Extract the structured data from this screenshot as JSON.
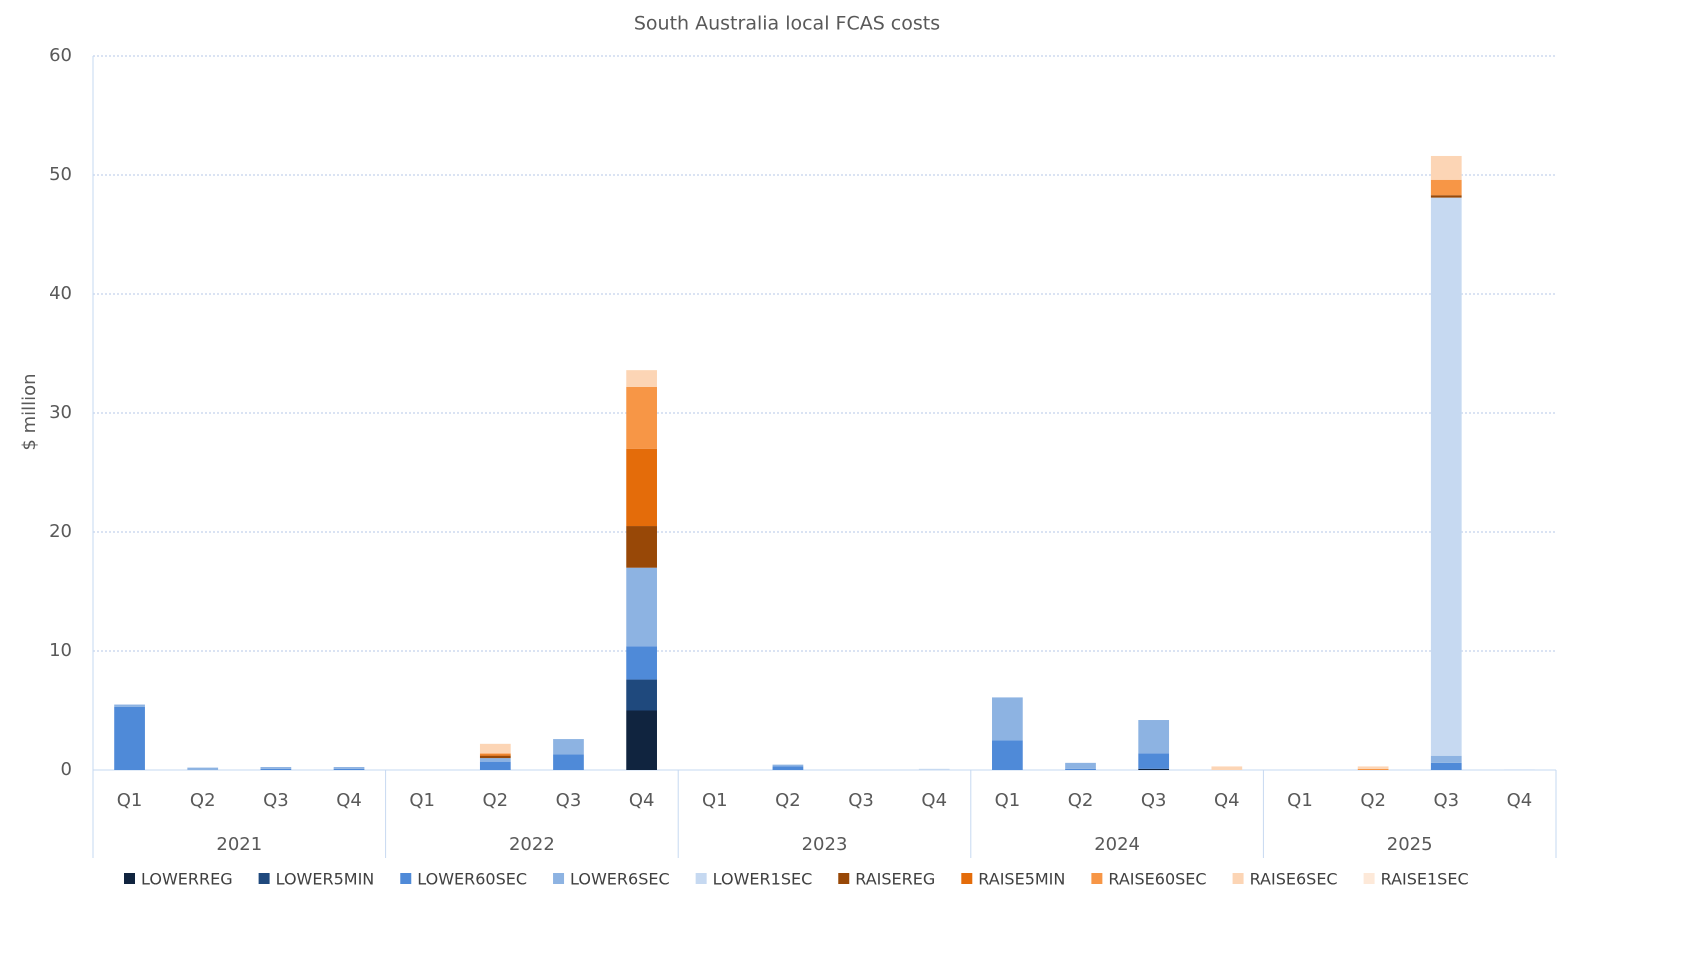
{
  "chart_data": {
    "type": "bar",
    "stacked": true,
    "title": "South Australia local FCAS costs",
    "y_label": "$ million",
    "categories": [
      "Q1",
      "Q2",
      "Q3",
      "Q4",
      "Q1",
      "Q2",
      "Q3",
      "Q4",
      "Q1",
      "Q2",
      "Q3",
      "Q4",
      "Q1",
      "Q2",
      "Q3",
      "Q4",
      "Q1",
      "Q2",
      "Q3",
      "Q4"
    ],
    "groups": [
      "2021",
      "2022",
      "2023",
      "2024",
      "2025"
    ],
    "ylim": [
      0,
      60
    ],
    "yticks": [
      0,
      10,
      20,
      30,
      40,
      50,
      60
    ],
    "grid": true,
    "legend": "bottom",
    "series": [
      {
        "name": "LOWERREG",
        "color": "#10243f",
        "values": [
          0,
          0,
          0,
          0,
          0,
          0,
          0,
          5.0,
          0,
          0,
          0,
          0,
          0,
          0,
          0.1,
          0,
          0,
          0,
          0,
          0
        ]
      },
      {
        "name": "LOWER5MIN",
        "color": "#1f497d",
        "values": [
          0,
          0,
          0,
          0,
          0,
          0,
          0,
          2.6,
          0,
          0,
          0,
          0,
          0,
          0,
          0,
          0,
          0,
          0,
          0,
          0
        ]
      },
      {
        "name": "LOWER60SEC",
        "color": "#4f8ad8",
        "values": [
          5.3,
          0,
          0.1,
          0.1,
          0,
          0.7,
          1.3,
          2.8,
          0,
          0.3,
          0,
          0,
          2.5,
          0.1,
          1.3,
          0,
          0,
          0,
          0.6,
          0
        ]
      },
      {
        "name": "LOWER6SEC",
        "color": "#8db3e2",
        "values": [
          0.2,
          0.2,
          0.15,
          0.15,
          0,
          0.3,
          1.3,
          6.6,
          0,
          0.15,
          0,
          0,
          3.6,
          0.5,
          2.8,
          0,
          0,
          0,
          0.6,
          0
        ]
      },
      {
        "name": "LOWER1SEC",
        "color": "#c6d9f1",
        "values": [
          0,
          0,
          0,
          0,
          0,
          0,
          0,
          0,
          0,
          0,
          0,
          0.1,
          0,
          0,
          0,
          0,
          0,
          0,
          46.9,
          0.05
        ]
      },
      {
        "name": "RAISEREG",
        "color": "#984807",
        "values": [
          0,
          0,
          0,
          0,
          0,
          0.2,
          0,
          3.5,
          0,
          0,
          0,
          0,
          0,
          0,
          0,
          0,
          0,
          0,
          0.2,
          0
        ]
      },
      {
        "name": "RAISE5MIN",
        "color": "#e46c0a",
        "values": [
          0,
          0,
          0,
          0,
          0,
          0.1,
          0,
          6.5,
          0,
          0,
          0,
          0,
          0,
          0,
          0,
          0,
          0,
          0,
          0,
          0
        ]
      },
      {
        "name": "RAISE60SEC",
        "color": "#f79646",
        "values": [
          0,
          0,
          0,
          0,
          0,
          0.1,
          0,
          5.2,
          0,
          0,
          0,
          0,
          0,
          0,
          0,
          0,
          0,
          0.1,
          1.3,
          0
        ]
      },
      {
        "name": "RAISE6SEC",
        "color": "#fcd5b5",
        "values": [
          0,
          0,
          0,
          0,
          0,
          0.8,
          0,
          1.4,
          0,
          0,
          0,
          0,
          0,
          0,
          0,
          0.3,
          0,
          0.2,
          2.0,
          0
        ]
      },
      {
        "name": "RAISE1SEC",
        "color": "#fde9d9",
        "values": [
          0,
          0,
          0,
          0,
          0,
          0,
          0,
          0,
          0,
          0,
          0,
          0,
          0,
          0,
          0,
          0,
          0,
          0,
          0,
          0
        ]
      }
    ]
  }
}
